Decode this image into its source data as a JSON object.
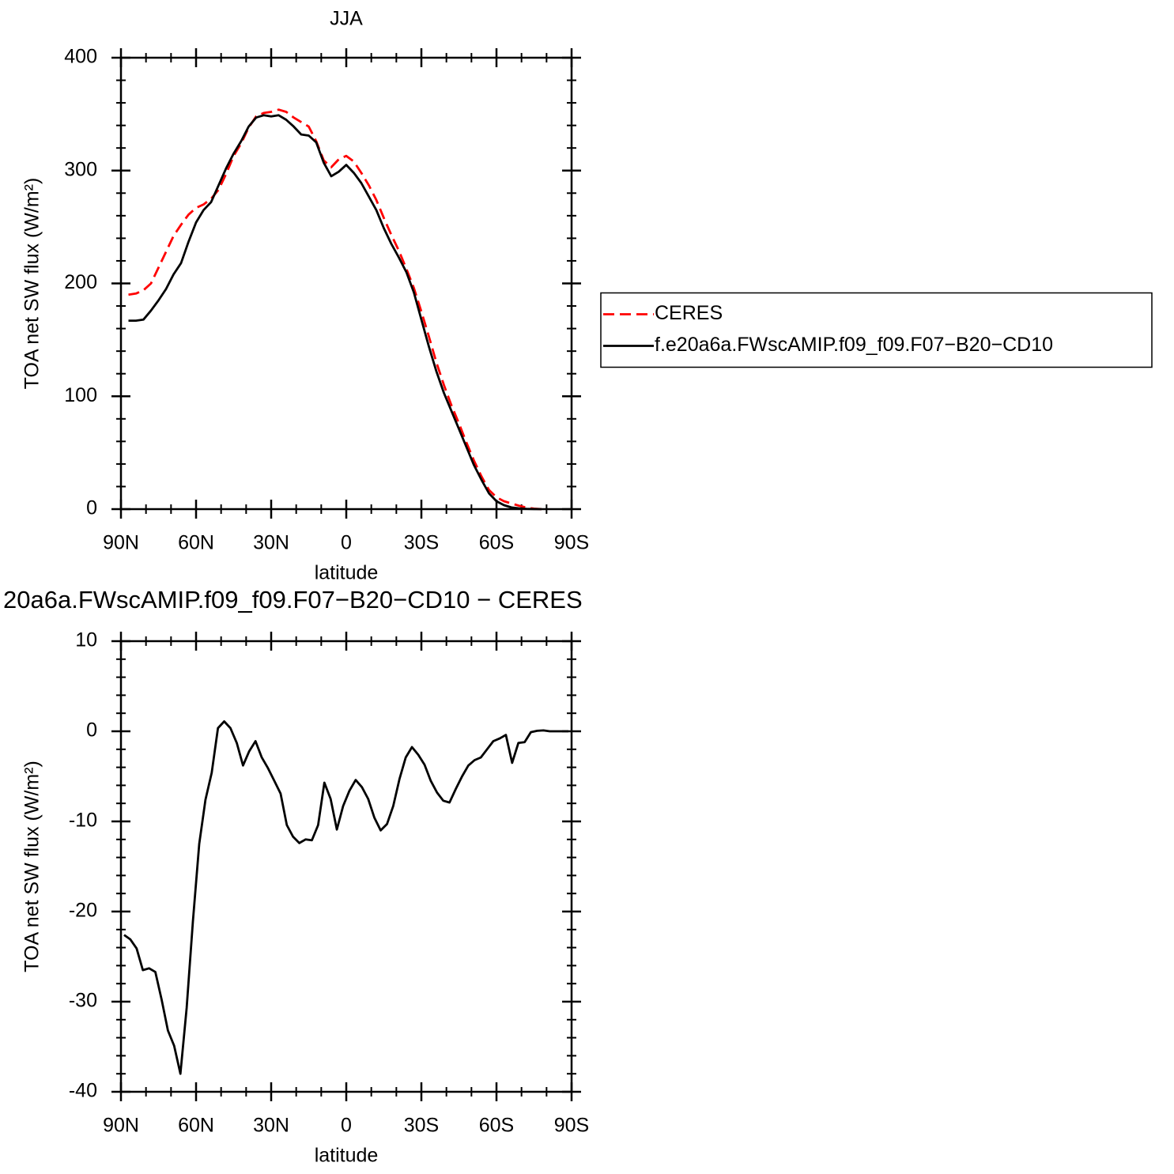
{
  "chart_data": [
    {
      "type": "line",
      "title": "JJA",
      "xlabel": "latitude",
      "ylabel": "TOA net SW flux (W/m²)",
      "x": [
        87,
        84,
        81,
        78,
        75,
        72,
        69,
        66,
        63,
        60,
        57,
        54,
        51,
        48,
        45,
        42,
        39,
        36,
        33,
        30,
        27,
        24,
        21,
        18,
        15,
        12,
        9,
        6,
        3,
        0,
        -3,
        -6,
        -9,
        -12,
        -15,
        -18,
        -21,
        -24,
        -27,
        -30,
        -33,
        -36,
        -39,
        -42,
        -45,
        -48,
        -51,
        -54,
        -57,
        -60,
        -63,
        -66,
        -69,
        -72,
        -75,
        -78,
        -81,
        -84,
        -87
      ],
      "xlim": [
        90,
        -90
      ],
      "xticks": [
        {
          "value": 90,
          "label": "90N"
        },
        {
          "value": 60,
          "label": "60N"
        },
        {
          "value": 30,
          "label": "30N"
        },
        0,
        {
          "value": -30,
          "label": "30S"
        },
        {
          "value": -60,
          "label": "60S"
        },
        {
          "value": -90,
          "label": "90S"
        }
      ],
      "xminorticks": [
        80,
        70,
        50,
        40,
        20,
        10,
        -10,
        -20,
        -40,
        -50,
        -70,
        -80
      ],
      "ylim": [
        0,
        400
      ],
      "yticks": [
        0,
        100,
        200,
        300,
        400
      ],
      "yminorticks": [
        20,
        40,
        60,
        80,
        120,
        140,
        160,
        180,
        220,
        240,
        260,
        280,
        320,
        340,
        360,
        380
      ],
      "legend": "right",
      "series": [
        {
          "name": "CERES",
          "color": "#ff0000",
          "dash": "dashed",
          "values": [
            190,
            191,
            194,
            200,
            214,
            228,
            242,
            252,
            261,
            267,
            270,
            275,
            283,
            297,
            313,
            324,
            338,
            348,
            351,
            352,
            354,
            352,
            347,
            343,
            339,
            326,
            309,
            303,
            310,
            313,
            308,
            298,
            287,
            274,
            258,
            243,
            229,
            213,
            196,
            175,
            153,
            130,
            110,
            92,
            76,
            59,
            43,
            29,
            17,
            10.5,
            7,
            5,
            3,
            1.4,
            0.4,
            0,
            null,
            null,
            null
          ]
        },
        {
          "name": "f.e20a6a.FWscAMIP.f09_f09.F07−B20−CD10",
          "color": "#000000",
          "values": [
            167,
            167,
            168,
            176,
            185,
            195,
            208,
            218,
            237,
            254,
            265,
            272,
            287,
            302,
            315,
            326,
            339,
            347,
            349,
            348,
            349,
            345,
            339,
            332,
            331,
            325,
            307,
            295,
            299,
            305,
            298,
            289,
            277,
            265,
            249,
            235,
            223,
            210,
            192,
            168,
            144,
            122,
            103,
            87,
            71,
            55,
            39,
            26,
            14,
            7,
            3.5,
            1.5,
            0.7,
            0.3,
            0.1,
            0,
            null,
            null,
            null
          ]
        }
      ]
    },
    {
      "type": "line",
      "title": "20a6a.FWscAMIP.f09_f09.F07−B20−CD10 − CERES",
      "xlabel": "latitude",
      "ylabel": "TOA net SW flux (W/m²)",
      "x": [
        88.75,
        86.25,
        83.75,
        81.25,
        78.75,
        76.25,
        73.75,
        71.25,
        68.75,
        66.25,
        63.75,
        61.25,
        58.75,
        56.25,
        53.75,
        51.25,
        48.75,
        46.25,
        43.75,
        41.25,
        38.75,
        36.25,
        33.75,
        31.25,
        28.75,
        26.25,
        23.75,
        21.25,
        18.75,
        16.25,
        13.75,
        11.25,
        8.75,
        6.25,
        3.75,
        1.25,
        -1.25,
        -3.75,
        -6.25,
        -8.75,
        -11.25,
        -13.75,
        -16.25,
        -18.75,
        -21.25,
        -23.75,
        -26.25,
        -28.75,
        -31.25,
        -33.75,
        -36.25,
        -38.75,
        -41.25,
        -43.75,
        -46.25,
        -48.75,
        -51.25,
        -53.75,
        -56.25,
        -58.75,
        -61.25,
        -63.75,
        -66.25,
        -68.75,
        -71.25,
        -73.75,
        -76.25,
        -78.75,
        -81.25,
        -83.75,
        -86.25,
        -88.75
      ],
      "xlim": [
        90,
        -90
      ],
      "xticks": [
        {
          "value": 90,
          "label": "90N"
        },
        {
          "value": 60,
          "label": "60N"
        },
        {
          "value": 30,
          "label": "30N"
        },
        0,
        {
          "value": -30,
          "label": "30S"
        },
        {
          "value": -60,
          "label": "60S"
        },
        {
          "value": -90,
          "label": "90S"
        }
      ],
      "xminorticks": [
        80,
        70,
        50,
        40,
        20,
        10,
        -10,
        -20,
        -40,
        -50,
        -70,
        -80
      ],
      "ylim": [
        -40,
        10
      ],
      "yticks": [
        -40,
        -30,
        -20,
        -10,
        0,
        10
      ],
      "yminorticks": [
        -38,
        -36,
        -34,
        -32,
        -28,
        -26,
        -24,
        -22,
        -18,
        -16,
        -14,
        -12,
        -8,
        -6,
        -4,
        -2,
        2,
        4,
        6,
        8
      ],
      "series": [
        {
          "color": "#000000",
          "values": [
            -22.6,
            -23.1,
            -24.1,
            -26.5,
            -26.3,
            -26.7,
            -29.8,
            -33.2,
            -34.9,
            -38.0,
            -30.7,
            -21.1,
            -12.5,
            -7.6,
            -4.6,
            0.35,
            1.1,
            0.35,
            -1.3,
            -3.8,
            -2.2,
            -1.1,
            -2.9,
            -4.1,
            -5.5,
            -6.9,
            -10.4,
            -11.7,
            -12.4,
            -12.0,
            -12.1,
            -10.4,
            -5.7,
            -7.5,
            -10.9,
            -8.3,
            -6.6,
            -5.4,
            -6.2,
            -7.5,
            -9.6,
            -11.0,
            -10.3,
            -8.3,
            -5.3,
            -2.9,
            -1.75,
            -2.6,
            -3.7,
            -5.5,
            -6.8,
            -7.7,
            -7.9,
            -6.4,
            -5.0,
            -3.8,
            -3.2,
            -2.9,
            -2.0,
            -1.1,
            -0.8,
            -0.4,
            -3.5,
            -1.3,
            -1.2,
            -0.1,
            0.05,
            0.1,
            0,
            0,
            0,
            0
          ]
        }
      ]
    }
  ]
}
